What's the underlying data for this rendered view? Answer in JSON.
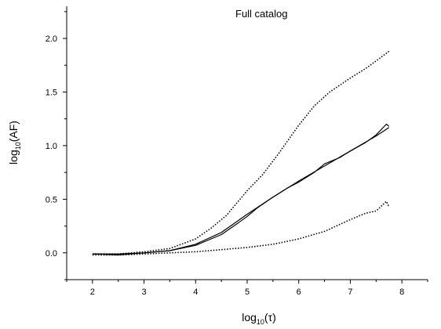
{
  "chart_data": {
    "type": "line",
    "title": "Full catalog",
    "xlabel": {
      "base": "log",
      "sub": "10",
      "arg": "(τ)"
    },
    "ylabel": {
      "base": "log",
      "sub": "10",
      "arg": "(AF)"
    },
    "xlim": [
      1.5,
      8.5
    ],
    "ylim": [
      -0.25,
      2.3
    ],
    "xticks": [
      2,
      3,
      4,
      5,
      6,
      7,
      8
    ],
    "xtick_labels": [
      "2",
      "3",
      "4",
      "5",
      "6",
      "7",
      "8"
    ],
    "yticks": [
      0.0,
      0.5,
      1.0,
      1.5,
      2.0
    ],
    "ytick_labels": [
      "0.0",
      "0.5",
      "1.0",
      "1.5",
      "2.0"
    ],
    "grid": false,
    "legend": "none",
    "series": [
      {
        "style": "solid",
        "color": "#000000",
        "x": [
          2.0,
          2.5,
          3.0,
          3.5,
          4.0,
          4.5,
          5.0,
          5.5,
          6.0,
          6.5,
          7.0,
          7.5,
          7.75
        ],
        "y": [
          -0.01,
          -0.01,
          0.0,
          0.02,
          0.08,
          0.19,
          0.36,
          0.52,
          0.67,
          0.81,
          0.95,
          1.09,
          1.17
        ]
      },
      {
        "style": "solid-noisy",
        "color": "#000000",
        "x": [
          2.0,
          2.5,
          3.0,
          3.5,
          4.0,
          4.5,
          4.8,
          5.0,
          5.2,
          5.5,
          5.8,
          6.0,
          6.3,
          6.5,
          6.8,
          7.0,
          7.3,
          7.5,
          7.7,
          7.75
        ],
        "y": [
          -0.01,
          -0.02,
          0.0,
          0.02,
          0.07,
          0.17,
          0.27,
          0.34,
          0.42,
          0.52,
          0.61,
          0.66,
          0.75,
          0.83,
          0.89,
          0.95,
          1.03,
          1.1,
          1.2,
          1.18
        ]
      },
      {
        "style": "dotted",
        "color": "#000000",
        "x": [
          2.0,
          2.5,
          3.0,
          3.5,
          4.0,
          4.3,
          4.6,
          5.0,
          5.3,
          5.6,
          6.0,
          6.3,
          6.6,
          7.0,
          7.3,
          7.5,
          7.75
        ],
        "y": [
          -0.01,
          -0.01,
          0.01,
          0.04,
          0.13,
          0.23,
          0.35,
          0.58,
          0.73,
          0.92,
          1.19,
          1.37,
          1.5,
          1.63,
          1.72,
          1.79,
          1.88
        ]
      },
      {
        "style": "dotted",
        "color": "#000000",
        "x": [
          2.0,
          2.5,
          3.0,
          3.5,
          4.0,
          4.5,
          5.0,
          5.5,
          6.0,
          6.5,
          7.0,
          7.3,
          7.5,
          7.7,
          7.75
        ],
        "y": [
          -0.02,
          -0.02,
          -0.01,
          0.0,
          0.01,
          0.03,
          0.05,
          0.08,
          0.13,
          0.2,
          0.31,
          0.37,
          0.39,
          0.48,
          0.43
        ]
      }
    ]
  }
}
